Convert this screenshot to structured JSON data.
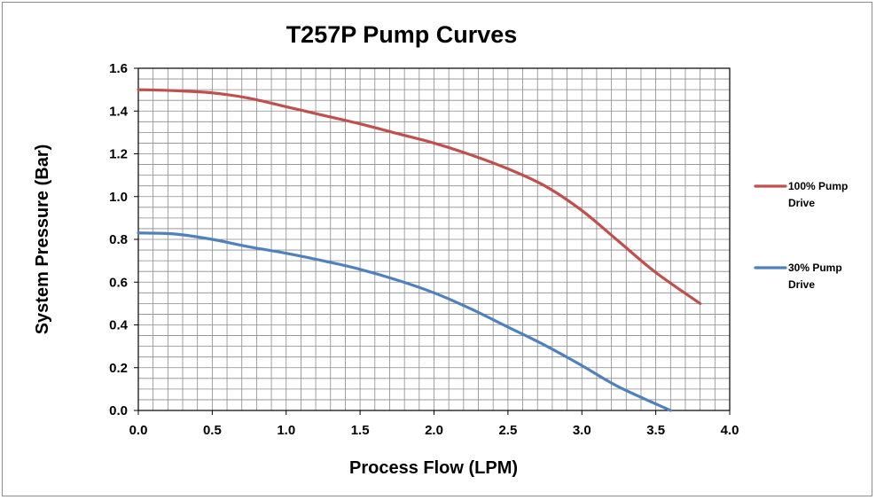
{
  "chart_data": {
    "type": "line",
    "title": "T257P Pump Curves",
    "xlabel": "Process Flow (LPM)",
    "ylabel": "System Pressure (Bar)",
    "xlim": [
      0,
      4
    ],
    "ylim": [
      0,
      1.6
    ],
    "x_ticks": [
      "0.0",
      "0.5",
      "1.0",
      "1.5",
      "2.0",
      "2.5",
      "3.0",
      "3.5",
      "4.0"
    ],
    "y_ticks": [
      "0.0",
      "0.2",
      "0.4",
      "0.6",
      "0.8",
      "1.0",
      "1.2",
      "1.4",
      "1.6"
    ],
    "grid": true,
    "legend_position": "right",
    "series": [
      {
        "name_lines": [
          "100% Pump",
          "Drive"
        ],
        "color": "#c0504d",
        "x": [
          0.0,
          0.25,
          0.5,
          0.75,
          1.0,
          1.25,
          1.5,
          1.75,
          2.0,
          2.25,
          2.5,
          2.75,
          3.0,
          3.25,
          3.5,
          3.8
        ],
        "y": [
          1.5,
          1.495,
          1.485,
          1.46,
          1.42,
          1.38,
          1.34,
          1.295,
          1.25,
          1.195,
          1.13,
          1.05,
          0.935,
          0.79,
          0.645,
          0.5
        ]
      },
      {
        "name_lines": [
          "30% Pump",
          "Drive"
        ],
        "color": "#4f81bd",
        "x": [
          0.0,
          0.25,
          0.5,
          0.75,
          1.0,
          1.25,
          1.5,
          1.75,
          2.0,
          2.25,
          2.5,
          2.75,
          3.0,
          3.25,
          3.6
        ],
        "y": [
          0.83,
          0.825,
          0.8,
          0.765,
          0.735,
          0.7,
          0.66,
          0.61,
          0.55,
          0.475,
          0.39,
          0.305,
          0.21,
          0.11,
          0.0
        ]
      }
    ]
  }
}
